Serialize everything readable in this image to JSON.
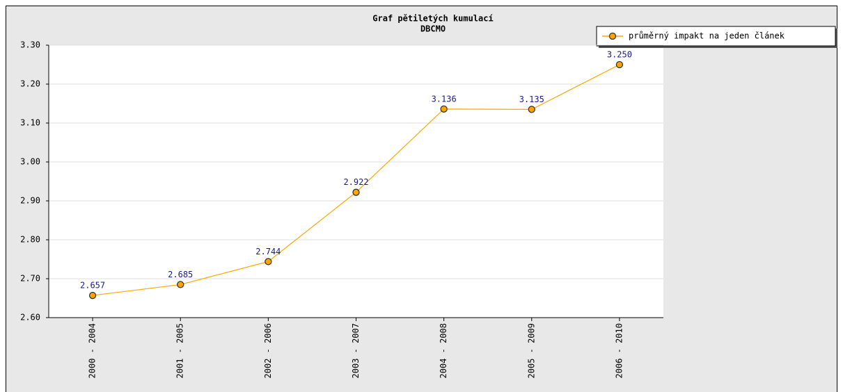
{
  "chart_data": {
    "type": "line",
    "title": "Graf pětiletých kumulací",
    "subtitle": "DBCMO",
    "categories": [
      "2000 - 2004",
      "2001 - 2005",
      "2002 - 2006",
      "2003 - 2007",
      "2004 - 2008",
      "2005 - 2009",
      "2006 - 2010"
    ],
    "series": [
      {
        "name": "průměrný impakt na jeden článek",
        "color": "#ffa500",
        "values": [
          2.657,
          2.685,
          2.744,
          2.922,
          3.136,
          3.135,
          3.25
        ],
        "value_labels": [
          "2.657",
          "2.685",
          "2.744",
          "2.922",
          "3.136",
          "3.135",
          "3.250"
        ]
      }
    ],
    "ylim": [
      2.6,
      3.3
    ],
    "yticks": [
      {
        "value": 2.6,
        "label": "2.60"
      },
      {
        "value": 2.7,
        "label": "2.70"
      },
      {
        "value": 2.8,
        "label": "2.80"
      },
      {
        "value": 2.9,
        "label": "2.90"
      },
      {
        "value": 3.0,
        "label": "3.00"
      },
      {
        "value": 3.1,
        "label": "3.10"
      },
      {
        "value": 3.2,
        "label": "3.20"
      },
      {
        "value": 3.3,
        "label": "3.30"
      }
    ],
    "grid": true,
    "legend": "top-right"
  }
}
